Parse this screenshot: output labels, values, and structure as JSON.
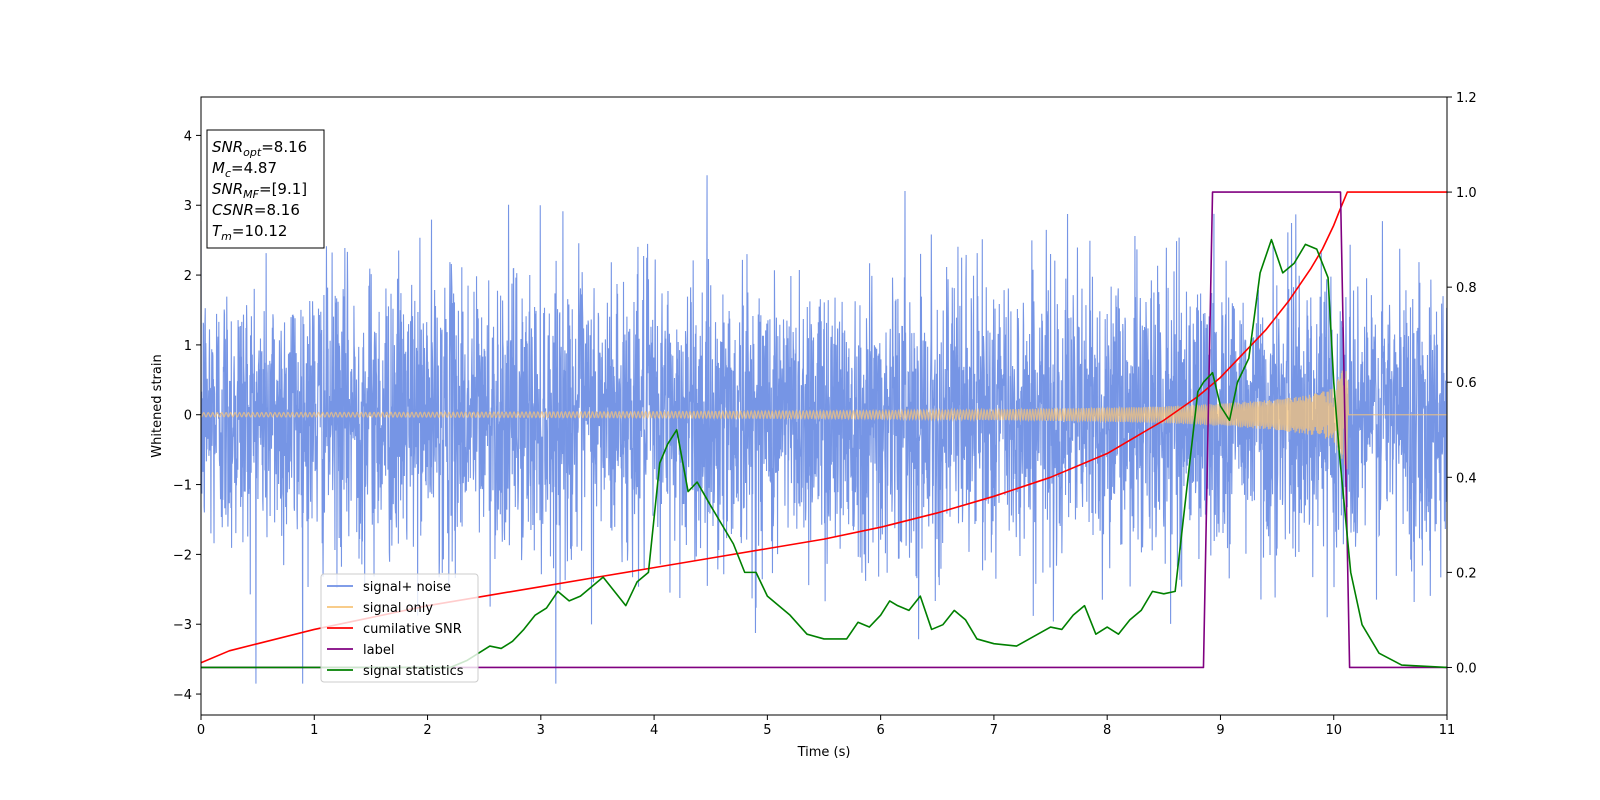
{
  "chart_data": {
    "type": "line",
    "xlabel": "Time (s)",
    "ylabel": "Whitened strain",
    "xlim": [
      0,
      11
    ],
    "ylim": [
      -4.3,
      4.55
    ],
    "ylim_right": [
      -0.1,
      1.2
    ],
    "x_ticks": [
      "0",
      "1",
      "2",
      "3",
      "4",
      "5",
      "6",
      "7",
      "8",
      "9",
      "10",
      "11"
    ],
    "y_ticks": [
      "4",
      "3",
      "2",
      "1",
      "0",
      "−1",
      "−2",
      "−3",
      "−4"
    ],
    "y_tick_values": [
      4,
      3,
      2,
      1,
      0,
      -1,
      -2,
      -3,
      -4
    ],
    "y_right_ticks": [
      "1.2",
      "1.0",
      "0.8",
      "0.6",
      "0.4",
      "0.2",
      "0.0"
    ],
    "y_right_tick_values": [
      1.2,
      1.0,
      0.8,
      0.6,
      0.4,
      0.2,
      0.0
    ],
    "grid": false,
    "legend": {
      "placement": "lower-left",
      "entries": [
        {
          "label": "signal+ noise",
          "color": "#6f8fe4"
        },
        {
          "label": "signal only",
          "color": "#f7c47a"
        },
        {
          "label": "cumilative SNR",
          "color": "#ff0000"
        },
        {
          "label": "label",
          "color": "#800080"
        },
        {
          "label": "signal statistics",
          "color": "#008000"
        }
      ]
    },
    "annotation": [
      {
        "main": "SNR",
        "sub": "opt",
        "value": "=8.16"
      },
      {
        "main": "M",
        "sub": "c",
        "value": "=4.87"
      },
      {
        "main": "SNR",
        "sub": "MF",
        "value": "=[9.1]"
      },
      {
        "main": "CSNR",
        "sub": "",
        "value": "=8.16"
      },
      {
        "main": "T",
        "sub": "m",
        "value": "=10.12"
      }
    ],
    "series": [
      {
        "name": "signal+ noise",
        "axis": "left",
        "color": "#6f8fe4",
        "description_values": {
          "noise_std": 1.0,
          "peak_min": -3.85,
          "peak_max": 4.15
        }
      },
      {
        "name": "signal only",
        "axis": "left",
        "color": "#f7c47a",
        "envelope": {
          "t": [
            0,
            2,
            4,
            6,
            7,
            8,
            8.5,
            9,
            9.5,
            9.8,
            10,
            10.12,
            10.13,
            11
          ],
          "amp": [
            0.03,
            0.035,
            0.045,
            0.06,
            0.075,
            0.1,
            0.12,
            0.16,
            0.22,
            0.29,
            0.38,
            0.8,
            0.0,
            0.0
          ]
        }
      },
      {
        "name": "cumilative SNR",
        "axis": "right",
        "color": "#ff0000",
        "x": [
          0,
          0.25,
          0.5,
          1,
          1.5,
          2,
          2.5,
          3,
          3.5,
          4,
          4.5,
          5,
          5.5,
          6,
          6.5,
          7,
          7.5,
          8,
          8.5,
          8.8,
          9,
          9.2,
          9.4,
          9.6,
          9.8,
          9.9,
          10,
          10.05,
          10.12,
          11
        ],
        "y": [
          0.01,
          0.035,
          0.05,
          0.08,
          0.105,
          0.13,
          0.15,
          0.17,
          0.19,
          0.21,
          0.23,
          0.25,
          0.27,
          0.295,
          0.325,
          0.36,
          0.4,
          0.45,
          0.52,
          0.57,
          0.61,
          0.66,
          0.71,
          0.77,
          0.84,
          0.88,
          0.93,
          0.96,
          1.0,
          1.0
        ]
      },
      {
        "name": "label",
        "axis": "right",
        "color": "#800080",
        "x": [
          0,
          8.85,
          8.93,
          10.06,
          10.14,
          11
        ],
        "y": [
          0,
          0,
          1,
          1,
          0,
          0
        ]
      },
      {
        "name": "signal statistics",
        "axis": "right",
        "color": "#008000",
        "x": [
          0,
          2.2,
          2.35,
          2.45,
          2.55,
          2.65,
          2.75,
          2.85,
          2.95,
          3.05,
          3.15,
          3.25,
          3.35,
          3.45,
          3.55,
          3.65,
          3.75,
          3.85,
          3.95,
          4.05,
          4.12,
          4.2,
          4.3,
          4.38,
          4.5,
          4.6,
          4.7,
          4.8,
          4.9,
          5.0,
          5.1,
          5.2,
          5.35,
          5.5,
          5.7,
          5.8,
          5.9,
          6.0,
          6.08,
          6.15,
          6.25,
          6.35,
          6.45,
          6.55,
          6.65,
          6.75,
          6.85,
          7.0,
          7.2,
          7.35,
          7.5,
          7.6,
          7.7,
          7.8,
          7.9,
          8.0,
          8.1,
          8.2,
          8.3,
          8.4,
          8.5,
          8.6,
          8.7,
          8.8,
          8.85,
          8.93,
          9.0,
          9.08,
          9.15,
          9.25,
          9.35,
          9.45,
          9.55,
          9.65,
          9.75,
          9.85,
          9.95,
          10.0,
          10.05,
          10.15,
          10.25,
          10.4,
          10.6,
          11
        ],
        "y": [
          0,
          0.0,
          0.015,
          0.03,
          0.045,
          0.04,
          0.055,
          0.08,
          0.11,
          0.125,
          0.16,
          0.14,
          0.15,
          0.17,
          0.19,
          0.16,
          0.13,
          0.18,
          0.2,
          0.43,
          0.47,
          0.5,
          0.37,
          0.39,
          0.34,
          0.3,
          0.26,
          0.2,
          0.2,
          0.15,
          0.13,
          0.11,
          0.07,
          0.06,
          0.06,
          0.095,
          0.085,
          0.11,
          0.14,
          0.13,
          0.12,
          0.15,
          0.08,
          0.09,
          0.12,
          0.1,
          0.06,
          0.05,
          0.045,
          0.065,
          0.085,
          0.08,
          0.11,
          0.13,
          0.07,
          0.085,
          0.07,
          0.1,
          0.12,
          0.16,
          0.155,
          0.16,
          0.37,
          0.58,
          0.6,
          0.62,
          0.55,
          0.52,
          0.6,
          0.65,
          0.83,
          0.9,
          0.83,
          0.85,
          0.89,
          0.88,
          0.82,
          0.6,
          0.45,
          0.2,
          0.09,
          0.03,
          0.005,
          0.0
        ]
      }
    ]
  }
}
